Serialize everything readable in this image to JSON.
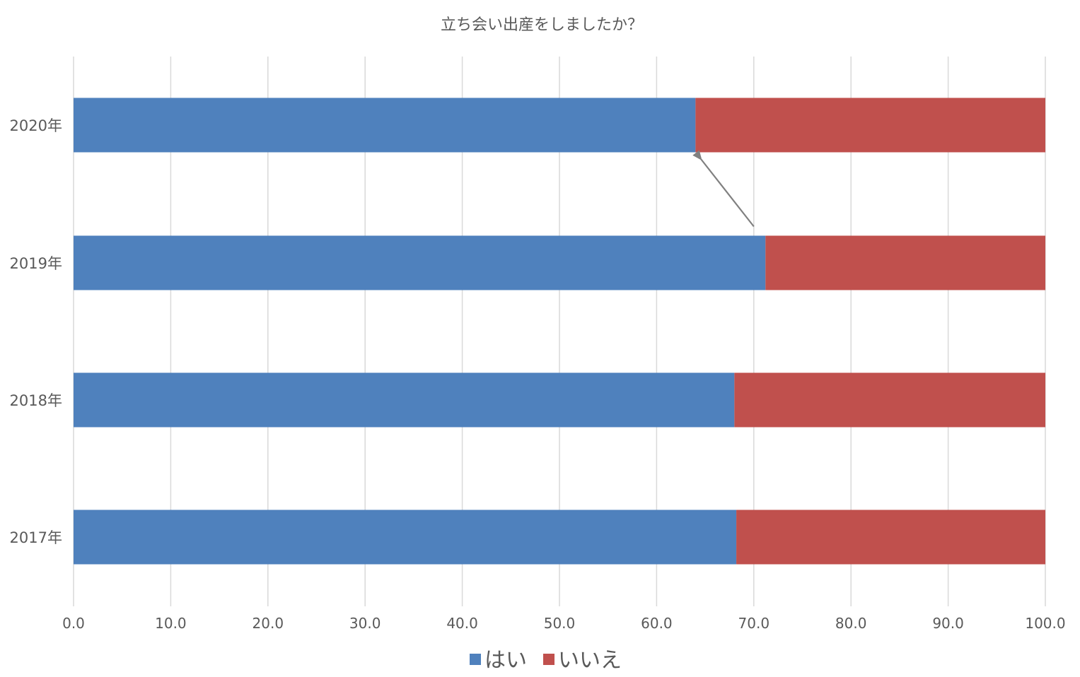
{
  "chart_data": {
    "type": "bar",
    "orientation": "horizontal",
    "stacked": true,
    "title": "立ち会い出産をしましたか？",
    "categories": [
      "2020年",
      "2019年",
      "2018年",
      "2017年"
    ],
    "series": [
      {
        "name": "はい",
        "color": "#4f81bd",
        "values": [
          64.0,
          71.2,
          68.0,
          68.2
        ]
      },
      {
        "name": "いいえ",
        "color": "#c0504d",
        "values": [
          36.0,
          28.8,
          32.0,
          31.8
        ]
      }
    ],
    "xlim": [
      0,
      100
    ],
    "xticks": [
      "0.0",
      "10.0",
      "20.0",
      "30.0",
      "40.0",
      "50.0",
      "60.0",
      "70.0",
      "80.0",
      "90.0",
      "100.0"
    ],
    "grid": true,
    "legend": "bottom",
    "annotation": {
      "type": "arrow",
      "from_category": "2019年",
      "to_category": "2020年",
      "color": "#808080"
    }
  }
}
